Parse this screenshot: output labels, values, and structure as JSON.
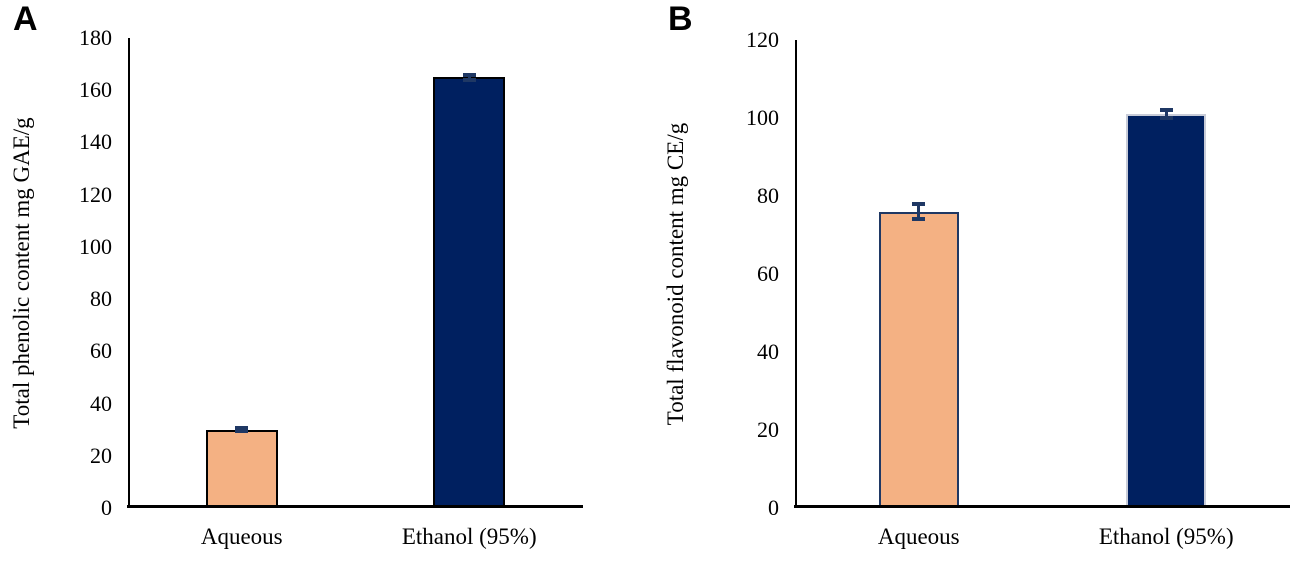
{
  "panels": [
    {
      "label": "A"
    },
    {
      "label": "B"
    }
  ],
  "chart_data": [
    {
      "type": "bar",
      "panel": "A",
      "title": "",
      "xlabel": "",
      "ylabel": "Total phenolic content mg GAE/g",
      "categories": [
        "Aqueous",
        "Ethanol (95%)"
      ],
      "values": [
        30,
        165
      ],
      "errors": [
        0.5,
        1
      ],
      "ylim": [
        0,
        180
      ],
      "ytick_step": 20,
      "grid": false,
      "legend": "none",
      "bar_fill_colors": [
        "#F4B183",
        "#002060"
      ],
      "bar_edge_colors": [
        "#000000",
        "#000000"
      ],
      "error_bar_color": "#1F3864",
      "axis_color": "#000000"
    },
    {
      "type": "bar",
      "panel": "B",
      "title": "",
      "xlabel": "",
      "ylabel": "Total flavonoid content mg CE/g",
      "categories": [
        "Aqueous",
        "Ethanol (95%)"
      ],
      "values": [
        76,
        101
      ],
      "errors": [
        2,
        1
      ],
      "ylim": [
        0,
        120
      ],
      "ytick_step": 20,
      "grid": false,
      "legend": "none",
      "bar_fill_colors": [
        "#F4B183",
        "#002060"
      ],
      "bar_edge_colors": [
        "#1F3864",
        "#C8CCD8"
      ],
      "error_bar_color": "#1F3864",
      "axis_color": "#000000"
    }
  ]
}
